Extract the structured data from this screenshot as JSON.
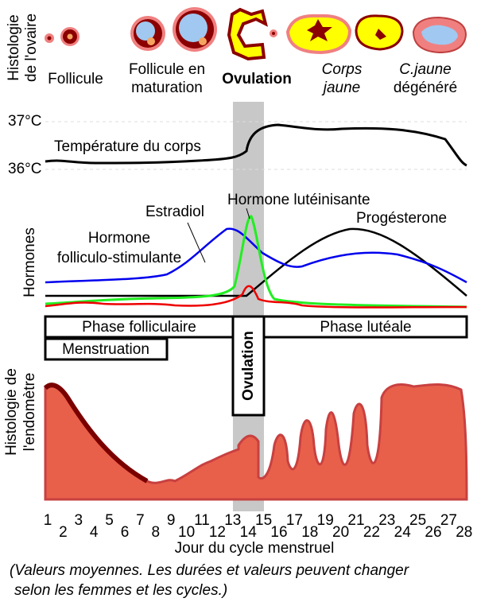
{
  "ovary": {
    "axis_label": [
      "Histologie",
      "de l'ovaire"
    ],
    "stages": [
      {
        "label": [
          "Follicule"
        ]
      },
      {
        "label": [
          "Follicule en",
          "maturation"
        ]
      },
      {
        "label": [
          "Ovulation"
        ]
      },
      {
        "label": [
          "Corps",
          "jaune"
        ]
      },
      {
        "label": [
          "C.jaune",
          "dégénéré"
        ]
      }
    ]
  },
  "temperature": {
    "ticks": [
      "37°C",
      "36°C"
    ],
    "label": "Température du corps"
  },
  "hormones": {
    "axis_label": "Hormones",
    "labels": {
      "estradiol": "Estradiol",
      "lh": "Hormone lutéinisante",
      "progesterone": "Progésterone",
      "fsh": [
        "Hormone",
        "folliculo-stimulante"
      ]
    }
  },
  "phases": {
    "follicular": "Phase folliculaire",
    "luteal": "Phase lutéale",
    "menstruation": "Menstruation",
    "ovulation": "Ovulation"
  },
  "endometrium": {
    "axis_label": [
      "Histologie de",
      "l'endomètre"
    ]
  },
  "days": [
    1,
    2,
    3,
    4,
    5,
    6,
    7,
    8,
    9,
    10,
    11,
    12,
    13,
    14,
    15,
    16,
    17,
    18,
    19,
    20,
    21,
    22,
    23,
    24,
    25,
    26,
    27,
    28
  ],
  "x_label": "Jour du cycle menstruel",
  "note": [
    "(Valeurs moyennes. Les durées et valeurs peuvent changer",
    "selon les femmes et les cycles.)"
  ]
}
